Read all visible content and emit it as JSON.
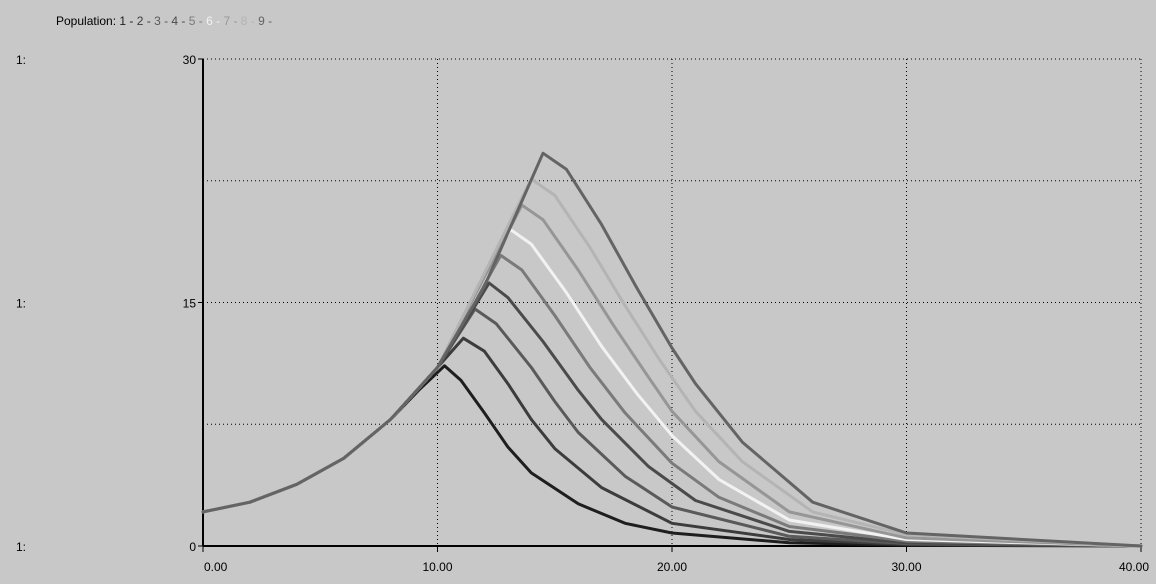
{
  "legend": {
    "title": "Population:",
    "items": [
      {
        "label": "1",
        "color": "#1e1e1e"
      },
      {
        "label": "2",
        "color": "#3c3c3c"
      },
      {
        "label": "3",
        "color": "#5a5a5a"
      },
      {
        "label": "4",
        "color": "#4a4a4a"
      },
      {
        "label": "5",
        "color": "#7a7a7a"
      },
      {
        "label": "6",
        "color": "#f2f2f2"
      },
      {
        "label": "7",
        "color": "#969696"
      },
      {
        "label": "8",
        "color": "#b4b4b4"
      },
      {
        "label": "9",
        "color": "#646464"
      }
    ]
  },
  "axis_prefix": "1:",
  "chart_data": {
    "type": "line",
    "x_ticks": [
      "0.00",
      "10.00",
      "20.00",
      "30.00",
      "40.00"
    ],
    "y_ticks": [
      "0",
      "15",
      "30"
    ],
    "xlim": [
      0,
      40
    ],
    "ylim": [
      0,
      30
    ],
    "grid": true,
    "legend_position": "top-left",
    "series": [
      {
        "name": "1",
        "color": "#1e1e1e",
        "points": [
          [
            0,
            2.1
          ],
          [
            2,
            2.7
          ],
          [
            4,
            3.8
          ],
          [
            6,
            5.4
          ],
          [
            8,
            7.8
          ],
          [
            9.2,
            9.6
          ],
          [
            10.3,
            11.1
          ],
          [
            11,
            10.2
          ],
          [
            12,
            8.2
          ],
          [
            13,
            6.1
          ],
          [
            14,
            4.5
          ],
          [
            16,
            2.6
          ],
          [
            18,
            1.4
          ],
          [
            20,
            0.8
          ],
          [
            25,
            0.2
          ],
          [
            30,
            0.05
          ],
          [
            40,
            0.0
          ]
        ]
      },
      {
        "name": "2",
        "color": "#3c3c3c",
        "points": [
          [
            0,
            2.1
          ],
          [
            2,
            2.7
          ],
          [
            4,
            3.8
          ],
          [
            6,
            5.4
          ],
          [
            8,
            7.8
          ],
          [
            10,
            11.0
          ],
          [
            11.1,
            12.8
          ],
          [
            12,
            12.0
          ],
          [
            13,
            10.0
          ],
          [
            14,
            7.8
          ],
          [
            15,
            6.0
          ],
          [
            17,
            3.6
          ],
          [
            20,
            1.4
          ],
          [
            25,
            0.4
          ],
          [
            30,
            0.1
          ],
          [
            40,
            0.0
          ]
        ]
      },
      {
        "name": "3",
        "color": "#5a5a5a",
        "points": [
          [
            0,
            2.1
          ],
          [
            2,
            2.7
          ],
          [
            4,
            3.8
          ],
          [
            6,
            5.4
          ],
          [
            8,
            7.8
          ],
          [
            10,
            11.0
          ],
          [
            11.6,
            14.6
          ],
          [
            12.5,
            13.7
          ],
          [
            14,
            11.0
          ],
          [
            15,
            8.9
          ],
          [
            16,
            7.0
          ],
          [
            18,
            4.3
          ],
          [
            20,
            2.4
          ],
          [
            25,
            0.6
          ],
          [
            30,
            0.15
          ],
          [
            40,
            0.0
          ]
        ]
      },
      {
        "name": "4",
        "color": "#4a4a4a",
        "points": [
          [
            0,
            2.1
          ],
          [
            2,
            2.7
          ],
          [
            4,
            3.8
          ],
          [
            6,
            5.4
          ],
          [
            8,
            7.8
          ],
          [
            10,
            11.0
          ],
          [
            12.2,
            16.2
          ],
          [
            13,
            15.3
          ],
          [
            14.5,
            12.6
          ],
          [
            16,
            9.6
          ],
          [
            17,
            7.8
          ],
          [
            19,
            4.9
          ],
          [
            21,
            2.8
          ],
          [
            25,
            0.9
          ],
          [
            30,
            0.2
          ],
          [
            40,
            0.0
          ]
        ]
      },
      {
        "name": "5",
        "color": "#7a7a7a",
        "points": [
          [
            0,
            2.1
          ],
          [
            2,
            2.7
          ],
          [
            4,
            3.8
          ],
          [
            6,
            5.4
          ],
          [
            8,
            7.8
          ],
          [
            10,
            11.0
          ],
          [
            12.7,
            17.9
          ],
          [
            13.6,
            17.0
          ],
          [
            15,
            14.2
          ],
          [
            16.5,
            11.0
          ],
          [
            18,
            8.2
          ],
          [
            20,
            5.1
          ],
          [
            22,
            3.0
          ],
          [
            25,
            1.2
          ],
          [
            30,
            0.3
          ],
          [
            40,
            0.0
          ]
        ]
      },
      {
        "name": "6",
        "color": "#f2f2f2",
        "points": [
          [
            0,
            2.1
          ],
          [
            2,
            2.7
          ],
          [
            4,
            3.8
          ],
          [
            6,
            5.4
          ],
          [
            8,
            7.8
          ],
          [
            10,
            11.0
          ],
          [
            13.1,
            19.5
          ],
          [
            14,
            18.6
          ],
          [
            15.5,
            15.6
          ],
          [
            17,
            12.3
          ],
          [
            18.5,
            9.4
          ],
          [
            20,
            6.8
          ],
          [
            22,
            4.1
          ],
          [
            25,
            1.6
          ],
          [
            30,
            0.4
          ],
          [
            40,
            0.0
          ]
        ]
      },
      {
        "name": "7",
        "color": "#969696",
        "points": [
          [
            0,
            2.1
          ],
          [
            2,
            2.7
          ],
          [
            4,
            3.8
          ],
          [
            6,
            5.4
          ],
          [
            8,
            7.8
          ],
          [
            10,
            11.0
          ],
          [
            13.6,
            21.0
          ],
          [
            14.5,
            20.1
          ],
          [
            16,
            17.0
          ],
          [
            17.5,
            13.6
          ],
          [
            19,
            10.4
          ],
          [
            20,
            8.3
          ],
          [
            22,
            5.2
          ],
          [
            25,
            2.1
          ],
          [
            30,
            0.5
          ],
          [
            40,
            0.0
          ]
        ]
      },
      {
        "name": "8",
        "color": "#b4b4b4",
        "points": [
          [
            0,
            2.1
          ],
          [
            2,
            2.7
          ],
          [
            4,
            3.8
          ],
          [
            6,
            5.4
          ],
          [
            8,
            7.8
          ],
          [
            10,
            11.0
          ],
          [
            14,
            22.6
          ],
          [
            15,
            21.6
          ],
          [
            16.5,
            18.4
          ],
          [
            18,
            14.8
          ],
          [
            19.5,
            11.4
          ],
          [
            21,
            8.3
          ],
          [
            23,
            5.2
          ],
          [
            26,
            2.1
          ],
          [
            30,
            0.7
          ],
          [
            40,
            0.0
          ]
        ]
      },
      {
        "name": "9",
        "color": "#646464",
        "points": [
          [
            0,
            2.1
          ],
          [
            2,
            2.7
          ],
          [
            4,
            3.8
          ],
          [
            6,
            5.4
          ],
          [
            8,
            7.8
          ],
          [
            10,
            11.0
          ],
          [
            12,
            16.0
          ],
          [
            14.5,
            24.2
          ],
          [
            15.5,
            23.2
          ],
          [
            17,
            19.8
          ],
          [
            18.5,
            15.9
          ],
          [
            20,
            12.2
          ],
          [
            21,
            10.0
          ],
          [
            23,
            6.4
          ],
          [
            26,
            2.7
          ],
          [
            30,
            0.8
          ],
          [
            40,
            0.0
          ]
        ]
      }
    ]
  }
}
